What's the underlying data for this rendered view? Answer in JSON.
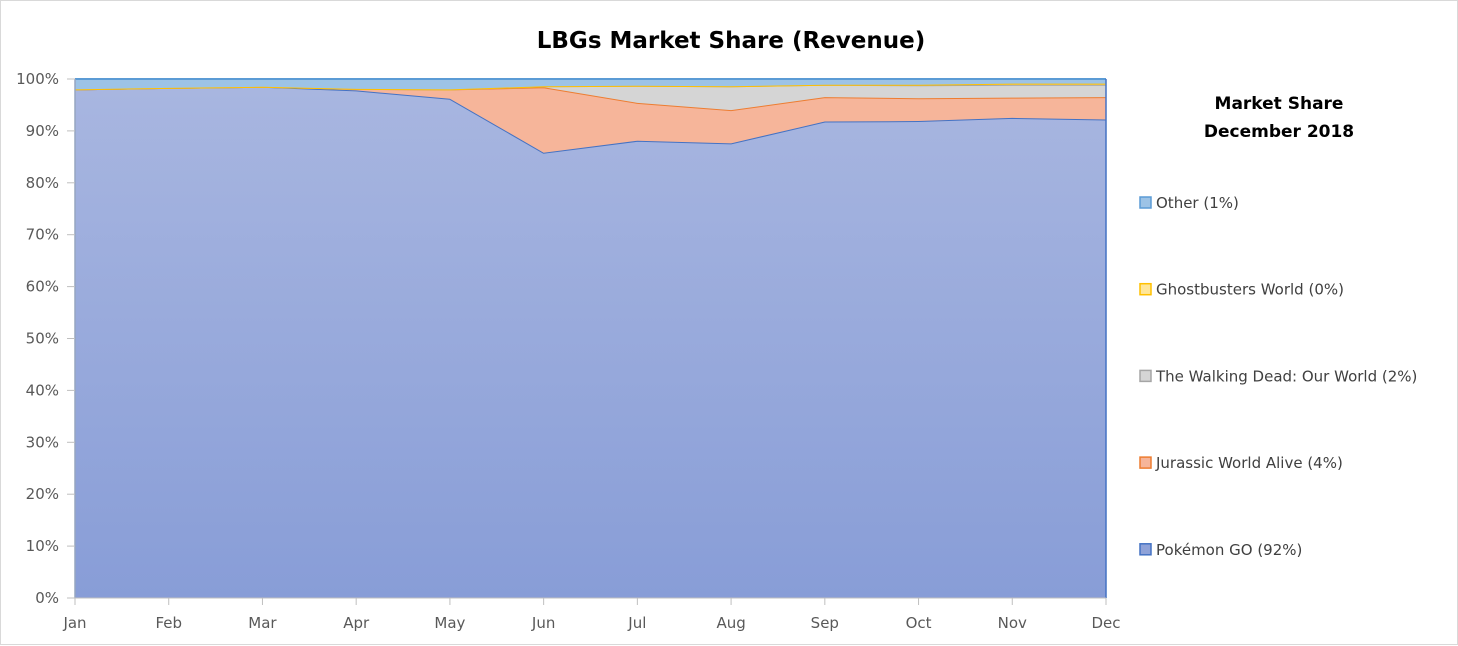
{
  "chart_data": {
    "type": "area",
    "stacked": true,
    "percent": true,
    "title": "LBGs  Market Share (Revenue)",
    "xlabel": "",
    "ylabel": "",
    "categories": [
      "Jan",
      "Feb",
      "Mar",
      "Apr",
      "May",
      "Jun",
      "Jul",
      "Aug",
      "Sep",
      "Oct",
      "Nov",
      "Dec"
    ],
    "y_ticks": [
      "0%",
      "10%",
      "20%",
      "30%",
      "40%",
      "50%",
      "60%",
      "70%",
      "80%",
      "90%",
      "100%"
    ],
    "ylim": [
      0,
      100
    ],
    "grid": false,
    "legend_placement": "right",
    "legend_title": [
      "Market Share",
      "December 2018"
    ],
    "series": [
      {
        "name": "Pokémon GO (92%)",
        "color": "#8fa2d8",
        "line_color": "#4472c4",
        "values": [
          98.0,
          98.3,
          98.5,
          97.8,
          96.2,
          85.8,
          88.1,
          87.6,
          91.8,
          91.9,
          92.5,
          92.2
        ]
      },
      {
        "name": "Jurassic World Alive (4%)",
        "color": "#f6b59a",
        "line_color": "#ed7d31",
        "values": [
          0,
          0,
          0,
          0.3,
          1.8,
          12.6,
          7.3,
          6.4,
          4.7,
          4.4,
          3.9,
          4.3
        ]
      },
      {
        "name": "The Walking Dead: Our World (2%)",
        "color": "#d5d5d5",
        "line_color": "#a5a5a5",
        "values": [
          0,
          0,
          0,
          0,
          0,
          0.2,
          3.3,
          4.6,
          2.4,
          2.5,
          2.5,
          2.4
        ]
      },
      {
        "name": "Ghostbusters World (0%)",
        "color": "#ffe699",
        "line_color": "#ffc000",
        "values": [
          0,
          0,
          0,
          0,
          0,
          0,
          0,
          0,
          0,
          0.1,
          0.2,
          0.2
        ]
      },
      {
        "name": "Other (1%)",
        "color": "#9dc3e6",
        "line_color": "#5b9bd5",
        "values": [
          2.0,
          1.7,
          1.5,
          1.9,
          2.0,
          1.4,
          1.3,
          1.4,
          1.1,
          1.1,
          0.9,
          0.9
        ]
      }
    ]
  }
}
